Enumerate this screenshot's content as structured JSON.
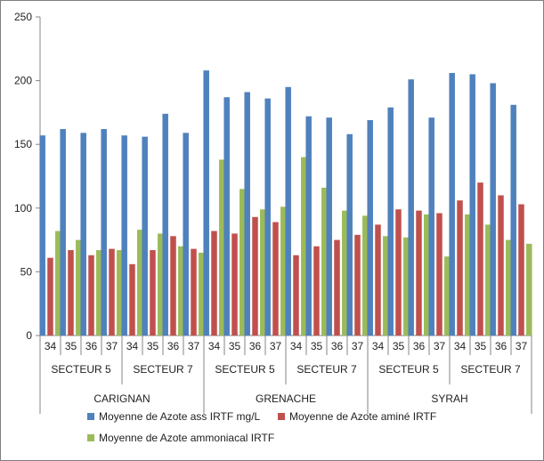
{
  "chart_data": {
    "type": "bar",
    "title": "",
    "xlabel": "",
    "ylabel": "",
    "ylim": [
      0,
      250
    ],
    "yticks": [
      0,
      50,
      100,
      150,
      200,
      250
    ],
    "grid": false,
    "legend_position": "bottom",
    "groups": [
      {
        "name": "CARIGNAN",
        "subgroups": [
          {
            "name": "SECTEUR 5",
            "categories": [
              "34",
              "35",
              "36",
              "37"
            ]
          },
          {
            "name": "SECTEUR 7",
            "categories": [
              "34",
              "35",
              "36",
              "37"
            ]
          }
        ]
      },
      {
        "name": "GRENACHE",
        "subgroups": [
          {
            "name": "SECTEUR 5",
            "categories": [
              "34",
              "35",
              "36",
              "37"
            ]
          },
          {
            "name": "SECTEUR 7",
            "categories": [
              "34",
              "35",
              "36",
              "37"
            ]
          }
        ]
      },
      {
        "name": "SYRAH",
        "subgroups": [
          {
            "name": "SECTEUR 5",
            "categories": [
              "34",
              "35",
              "36",
              "37"
            ]
          },
          {
            "name": "SECTEUR 7",
            "categories": [
              "34",
              "35",
              "36",
              "37"
            ]
          }
        ]
      }
    ],
    "series": [
      {
        "name": "Moyenne de Azote ass IRTF mg/L",
        "color": "#4f81bd",
        "values": [
          157,
          162,
          159,
          162,
          157,
          156,
          174,
          159,
          208,
          187,
          191,
          186,
          195,
          172,
          171,
          158,
          169,
          179,
          201,
          171,
          206,
          205,
          198,
          181
        ]
      },
      {
        "name": "Moyenne de Azote aminé IRTF",
        "color": "#c0504d",
        "values": [
          61,
          67,
          63,
          68,
          56,
          67,
          78,
          68,
          82,
          80,
          93,
          89,
          63,
          70,
          75,
          79,
          87,
          99,
          98,
          96,
          106,
          120,
          110,
          103
        ]
      },
      {
        "name": "Moyenne de Azote ammoniacal IRTF",
        "color": "#9bbb59",
        "values": [
          82,
          75,
          67,
          67,
          83,
          80,
          70,
          65,
          138,
          115,
          99,
          101,
          140,
          116,
          98,
          94,
          78,
          77,
          95,
          62,
          95,
          87,
          75,
          72
        ]
      }
    ]
  }
}
